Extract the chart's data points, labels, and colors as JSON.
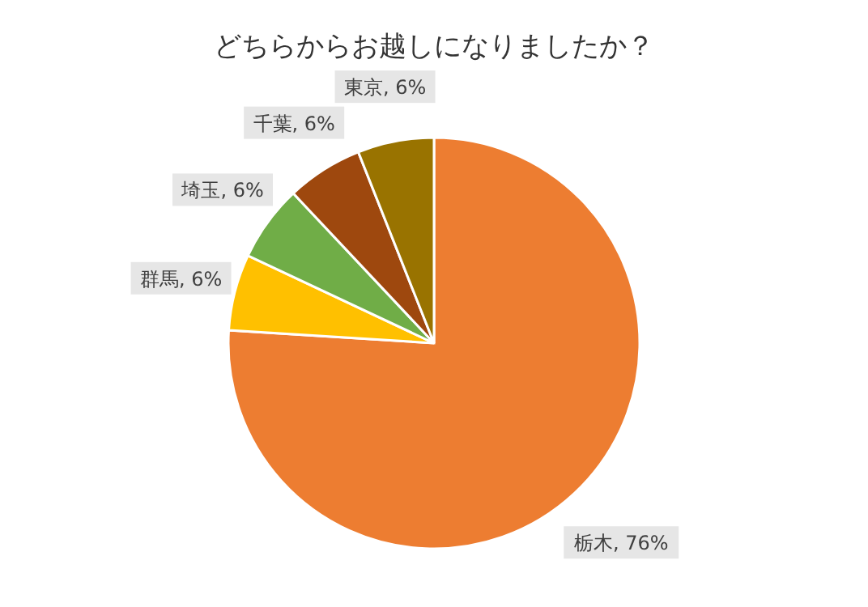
{
  "chart_data": {
    "type": "pie",
    "title": "どちらからお越しになりましたか？",
    "categories": [
      "栃木",
      "群馬",
      "埼玉",
      "千葉",
      "東京"
    ],
    "values": [
      76,
      6,
      6,
      6,
      6
    ],
    "value_labels": [
      "76%",
      "6%",
      "6%",
      "6%",
      "6%"
    ],
    "colors": [
      "#ed7d31",
      "#ffc000",
      "#70ad47",
      "#9e480e",
      "#997300"
    ],
    "legend": false
  }
}
